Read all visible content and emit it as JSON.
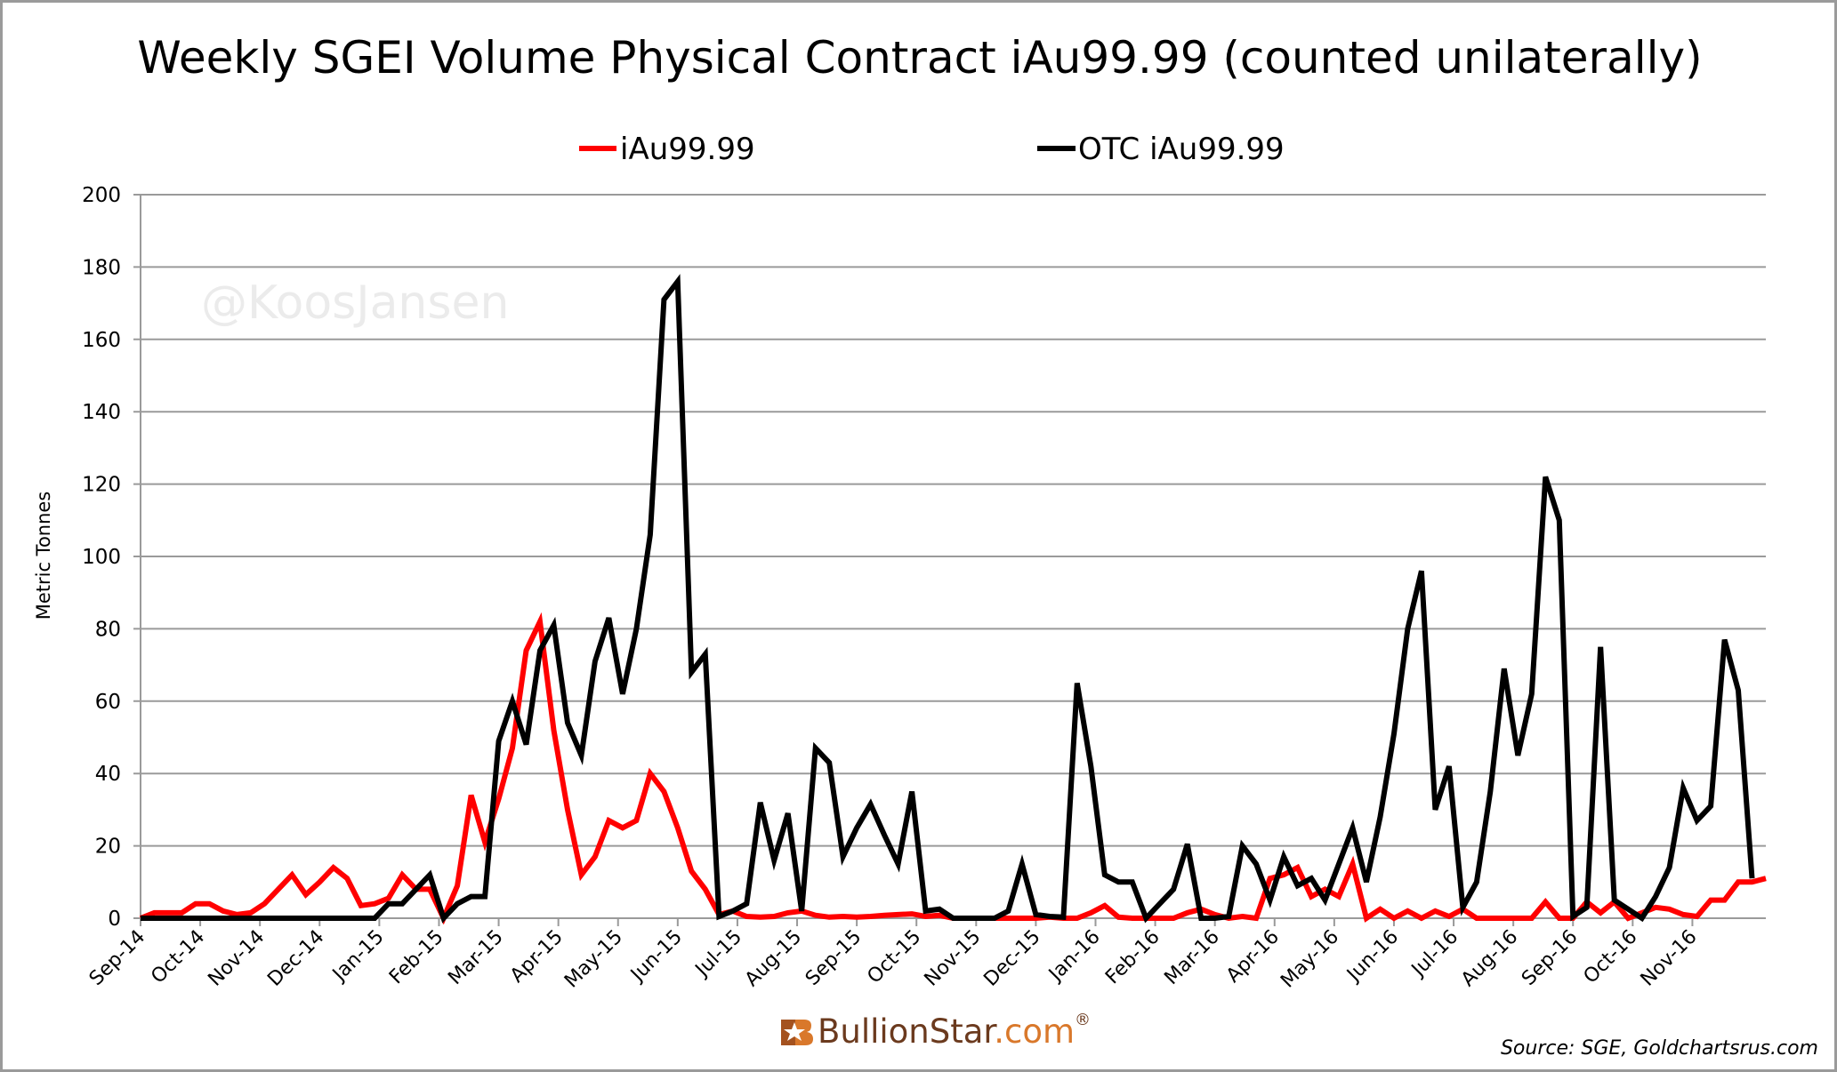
{
  "chart_data": {
    "type": "line",
    "title": "Weekly SGEI Volume Physical Contract iAu99.99 (counted unilaterally)",
    "ylabel": "Metric Tonnes",
    "xlabel": "",
    "ylim": [
      0,
      200
    ],
    "y_ticks": [
      0,
      20,
      40,
      60,
      80,
      100,
      120,
      140,
      160,
      180,
      200
    ],
    "grid": true,
    "legend_position": "top",
    "x_tick_labels": [
      "Sep-14",
      "Oct-14",
      "Nov-14",
      "Dec-14",
      "Jan-15",
      "Feb-15",
      "Mar-15",
      "Apr-15",
      "May-15",
      "Jun-15",
      "Jul-15",
      "Aug-15",
      "Sep-15",
      "Oct-15",
      "Nov-15",
      "Dec-15",
      "Jan-16",
      "Feb-16",
      "Mar-16",
      "Apr-16",
      "May-16",
      "Jun-16",
      "Jul-16",
      "Aug-16",
      "Sep-16",
      "Oct-16",
      "Nov-16"
    ],
    "x_frequency": "weekly",
    "series": [
      {
        "name": "iAu99.99",
        "color": "#ff0000",
        "values": [
          0,
          1.5,
          1.5,
          1.5,
          4,
          4,
          2,
          1,
          1.5,
          4,
          8,
          12,
          6.5,
          10,
          14,
          11,
          3.5,
          4,
          5.5,
          12,
          8,
          8,
          0,
          9,
          34,
          21,
          33,
          47,
          74,
          82,
          52,
          30,
          12,
          17,
          27,
          25,
          27,
          40,
          35,
          25,
          13,
          8,
          1,
          2,
          0.5,
          0.3,
          0.5,
          1.5,
          2,
          0.8,
          0.3,
          0.5,
          0.3,
          0.5,
          0.8,
          1,
          1.2,
          0.5,
          0.8,
          0,
          0,
          0,
          0,
          0,
          0,
          0,
          0.3,
          0,
          0,
          1.5,
          3.5,
          0.3,
          0,
          0,
          0,
          0,
          1.5,
          2.5,
          1,
          0,
          0.5,
          0,
          11,
          12,
          14,
          6,
          8,
          6,
          15,
          0,
          2.5,
          0,
          2,
          0,
          2,
          0.5,
          2.5,
          0,
          0,
          0,
          0,
          0,
          4.5,
          0,
          0,
          4.5,
          1.5,
          4.5,
          0,
          1.5,
          3,
          2.5,
          1,
          0.5,
          5,
          5,
          10,
          10,
          11
        ]
      },
      {
        "name": "OTC iAu99.99",
        "color": "#000000",
        "values": [
          0,
          0,
          0,
          0,
          0,
          0,
          0,
          0,
          0,
          0,
          0,
          0,
          0,
          0,
          0,
          0,
          0,
          0,
          4,
          4,
          8,
          12,
          0,
          4,
          6,
          6,
          49,
          60,
          48,
          74,
          81,
          54,
          45,
          71,
          83,
          62,
          80,
          106,
          171,
          176,
          68,
          73,
          0.5,
          2,
          4,
          32,
          16,
          29,
          2,
          47,
          43,
          17,
          25,
          31.5,
          23,
          15,
          35,
          2,
          2.5,
          0,
          0,
          0,
          0,
          2,
          15,
          1,
          0.5,
          0.3,
          65,
          42,
          12,
          10,
          10,
          0,
          4,
          8,
          20.5,
          0,
          0,
          0.5,
          20,
          15,
          5,
          17,
          9,
          11,
          5,
          15,
          25,
          10,
          28,
          51,
          80,
          96,
          30,
          42,
          3,
          10,
          35,
          69,
          45,
          62,
          122,
          110,
          0.5,
          3,
          75,
          5,
          2.5,
          0,
          6,
          14,
          36,
          27,
          31,
          77,
          63,
          11
        ]
      }
    ]
  },
  "watermark": "@KoosJansen",
  "logo": {
    "brand": "BullionStar",
    "domain": ".com",
    "mark": "®",
    "brand_color": "#6b3a1e",
    "accent_color": "#d9782b"
  },
  "source": "Source: SGE, Goldchartsrus.com"
}
